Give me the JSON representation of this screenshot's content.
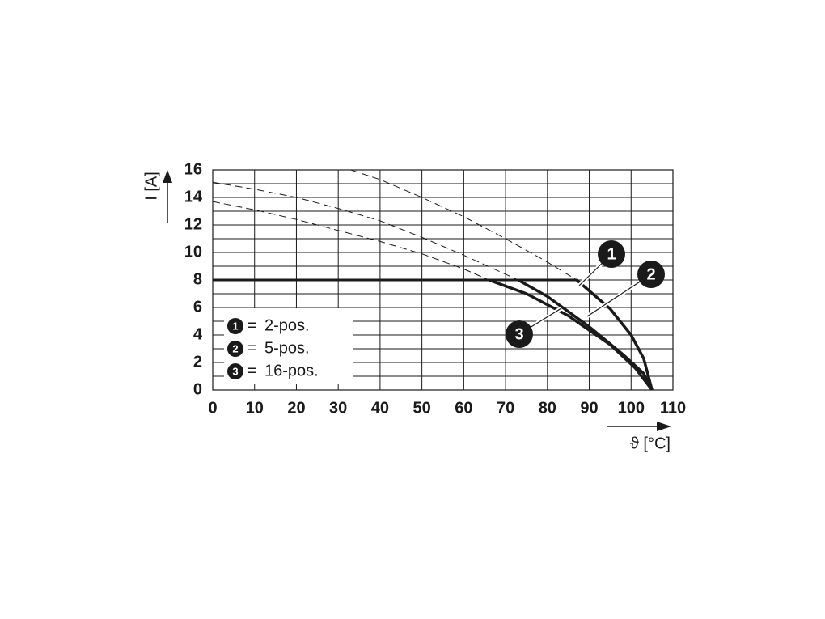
{
  "chart_data": {
    "type": "line",
    "x_label": "ϑ [°C]",
    "y_label": "I [A]",
    "xlim": [
      0,
      110
    ],
    "xticks": [
      0,
      10,
      20,
      30,
      40,
      50,
      60,
      70,
      80,
      90,
      100,
      110
    ],
    "ylim": [
      0,
      16
    ],
    "yticks": [
      0,
      2,
      4,
      6,
      8,
      10,
      12,
      14,
      16
    ],
    "yminor_ticks": [
      1,
      3,
      5,
      7,
      9,
      11,
      13,
      15
    ],
    "grid": true,
    "limit": 8,
    "legend_separator": "=",
    "series": [
      {
        "name": "2-pos.",
        "marker": "1",
        "color": "#1a1a1a",
        "x": [
          33,
          40,
          50,
          60,
          70,
          80,
          87,
          95,
          100,
          103,
          105
        ],
        "values": [
          16,
          15.3,
          14,
          12.6,
          11,
          9.3,
          8,
          5.9,
          4,
          2.3,
          0
        ]
      },
      {
        "name": "5-pos.",
        "marker": "2",
        "color": "#1a1a1a",
        "x": [
          0,
          10,
          20,
          30,
          40,
          50,
          60,
          73,
          80,
          90,
          98,
          103,
          105
        ],
        "values": [
          15.1,
          14.6,
          14,
          13.2,
          12.3,
          11.1,
          9.8,
          8,
          6.8,
          4.6,
          2.6,
          1.2,
          0
        ]
      },
      {
        "name": "16-pos.",
        "marker": "3",
        "color": "#1a1a1a",
        "x": [
          0,
          10,
          20,
          30,
          40,
          50,
          60,
          66,
          75,
          85,
          95,
          101,
          105
        ],
        "values": [
          13.7,
          13.1,
          12.4,
          11.6,
          10.8,
          9.9,
          8.8,
          8,
          7,
          5.4,
          3.3,
          1.6,
          0
        ]
      }
    ]
  }
}
